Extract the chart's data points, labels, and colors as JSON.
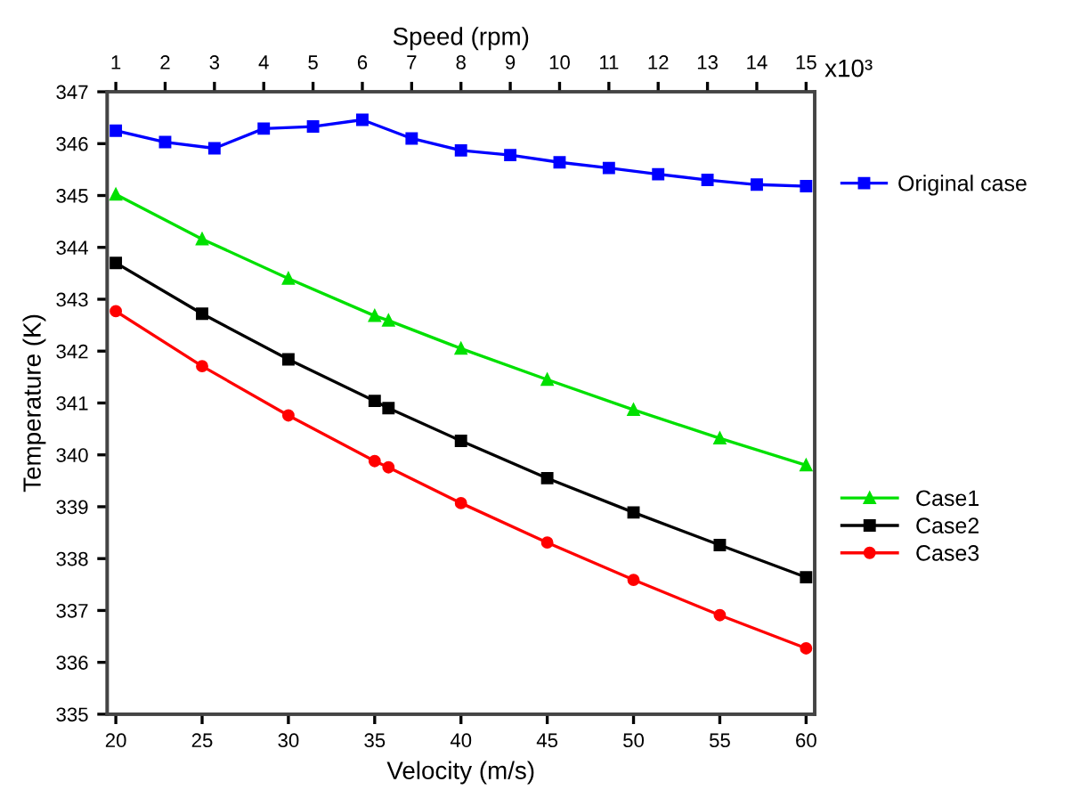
{
  "chart_data": {
    "type": "line",
    "xlabel": "Velocity (m/s)",
    "ylabel": "Temperature (K)",
    "x2label": "Speed (rpm)",
    "xlim": [
      19.5,
      60.5
    ],
    "xticks": [
      20,
      25,
      30,
      35,
      40,
      45,
      50,
      55,
      60
    ],
    "x2lim": [
      0.825,
      15.175
    ],
    "x2ticks": [
      1,
      2,
      3,
      4,
      5,
      6,
      7,
      8,
      9,
      10,
      11,
      12,
      13,
      14,
      15
    ],
    "ylim": [
      335,
      347
    ],
    "yticks": [
      335,
      336,
      337,
      338,
      339,
      340,
      341,
      342,
      343,
      344,
      345,
      346,
      347
    ],
    "annotations": [
      "x10³"
    ],
    "grid": false,
    "legend": "right",
    "line_style": "solid",
    "series": [
      {
        "name": "Original case",
        "color": "#0000ff",
        "marker": "square",
        "axis": "x2",
        "x": [
          1,
          2,
          3,
          4,
          5,
          6,
          7,
          8,
          9,
          10,
          11,
          12,
          13,
          14,
          15
        ],
        "values": [
          346.25,
          346.03,
          345.91,
          346.29,
          346.33,
          346.46,
          346.1,
          345.87,
          345.78,
          345.64,
          345.53,
          345.41,
          345.3,
          345.21,
          345.18
        ]
      },
      {
        "name": "Case1",
        "color": "#00e000",
        "marker": "triangle",
        "x": [
          20,
          25,
          30,
          35,
          35.8,
          40,
          45,
          50,
          55,
          60
        ],
        "values": [
          345.02,
          344.16,
          343.4,
          342.68,
          342.59,
          342.05,
          341.45,
          340.87,
          340.32,
          339.8
        ]
      },
      {
        "name": "Case2",
        "color": "#000000",
        "marker": "square",
        "x": [
          20,
          25,
          30,
          35,
          35.8,
          40,
          45,
          50,
          55,
          60
        ],
        "values": [
          343.7,
          342.72,
          341.84,
          341.04,
          340.9,
          340.27,
          339.55,
          338.89,
          338.26,
          337.64
        ]
      },
      {
        "name": "Case3",
        "color": "#ff0000",
        "marker": "circle",
        "x": [
          20,
          25,
          30,
          35,
          35.8,
          40,
          45,
          50,
          55,
          60
        ],
        "values": [
          342.77,
          341.71,
          340.76,
          339.88,
          339.76,
          339.07,
          338.31,
          337.59,
          336.91,
          336.27
        ]
      }
    ]
  }
}
